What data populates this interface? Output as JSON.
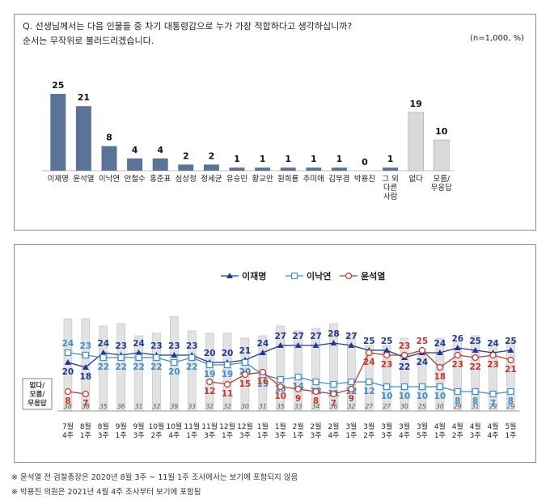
{
  "question": {
    "line1": "Q. 선생님께서는 다음 인물들 중 차기 대통령감으로 누가 가장 적합하다고 생각하십니까?",
    "line2": "순서는 무작위로 불러드리겠습니다.",
    "sample_note": "(n=1,000, %)"
  },
  "footnotes": [
    "※ 윤석열 전 검찰총장은 2020년 8월 3주 ~ 11월 1주 조사에서는 보기에 포함되지 않음",
    "※ 박용진 의원은 2021년 4월 4주 조사부터 보기에 포함됨"
  ],
  "colors": {
    "bar_main": "#5b7397",
    "bar_grey": "#d9d9d9",
    "lee_jm": "#1f3a93",
    "lee_ny": "#3e8fc5",
    "yoon": "#c0392b"
  },
  "chart_data": [
    {
      "type": "bar",
      "categories": [
        "이재명",
        "윤석열",
        "이낙연",
        "안철수",
        "홍준표",
        "심상정",
        "정세균",
        "유승민",
        "황교안",
        "원희룡",
        "추미애",
        "김부겸",
        "박용진",
        "그 외 다른 사람",
        "없다",
        "모름/ 무응답"
      ],
      "values": [
        25,
        21,
        8,
        4,
        4,
        2,
        2,
        1,
        1,
        1,
        1,
        1,
        0,
        1,
        19,
        10
      ],
      "ylim": [
        0,
        28
      ]
    },
    {
      "type": "line",
      "x": [
        "7월 4주",
        "8월 1주",
        "8월 3주",
        "9월 1주",
        "9월 3주",
        "10월 2주",
        "10월 4주",
        "11월 1주",
        "11월 3주",
        "12월 1주",
        "12월 3주",
        "1월 1주",
        "1월 3주",
        "2월 1주",
        "2월 3주",
        "2월 4주",
        "3월 1주",
        "3월 2주",
        "3월 3주",
        "3월 4주",
        "3월 5주",
        "4월 1주",
        "4월 2주",
        "4월 3주",
        "4월 4주",
        "5월 1주"
      ],
      "series": [
        {
          "name": "이재명",
          "values": [
            20,
            18,
            24,
            23,
            24,
            23,
            23,
            23,
            20,
            20,
            21,
            24,
            27,
            27,
            27,
            28,
            27,
            25,
            25,
            22,
            24,
            24,
            26,
            25,
            24,
            25
          ]
        },
        {
          "name": "이낙연",
          "values": [
            24,
            23,
            22,
            22,
            22,
            22,
            20,
            22,
            19,
            19,
            20,
            15,
            13,
            14,
            12,
            11,
            12,
            12,
            10,
            10,
            10,
            10,
            8,
            8,
            7,
            8
          ]
        },
        {
          "name": "윤석열",
          "values": [
            8,
            7,
            null,
            null,
            null,
            null,
            null,
            null,
            12,
            11,
            15,
            16,
            10,
            9,
            8,
            7,
            9,
            24,
            23,
            23,
            25,
            18,
            23,
            22,
            23,
            21
          ]
        }
      ],
      "bars": {
        "name": "없다/ 모름/ 무응답",
        "values": [
          38,
          38,
          35,
          36,
          31,
          32,
          39,
          33,
          32,
          32,
          30,
          31,
          35,
          33,
          34,
          36,
          32,
          27,
          27,
          30,
          25,
          30,
          29,
          31,
          29,
          29
        ]
      },
      "ylim": [
        0,
        45
      ],
      "legend": "top"
    }
  ]
}
